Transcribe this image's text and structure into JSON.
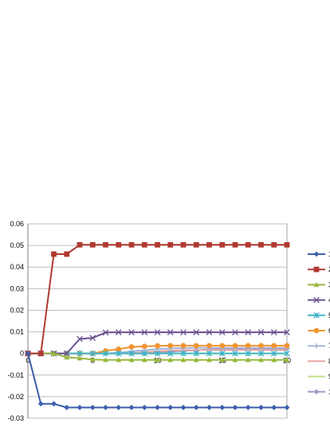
{
  "chart_data": {
    "type": "line",
    "title": "",
    "xlabel": "",
    "ylabel": "",
    "x": [
      0,
      1,
      2,
      3,
      4,
      5,
      6,
      7,
      8,
      9,
      10,
      11,
      12,
      13,
      14,
      15,
      16,
      17,
      18,
      19,
      20
    ],
    "xlim": [
      0,
      20
    ],
    "ylim": [
      -0.03,
      0.06
    ],
    "x_ticks": [
      0,
      5,
      10,
      15,
      20
    ],
    "x_tick_labels": [
      "0",
      "5",
      "10",
      "15",
      "20"
    ],
    "y_ticks": [
      -0.03,
      -0.02,
      -0.01,
      0,
      0.01,
      0.02,
      0.03,
      0.04,
      0.05,
      0.06
    ],
    "y_tick_labels": [
      "-0.03",
      "-0.02",
      "-0.01",
      "0",
      "0.01",
      "0.02",
      "0.03",
      "0.04",
      "0.05",
      "0.06"
    ],
    "grid": "horizontal",
    "legend_position": "right",
    "series": [
      {
        "name": "1",
        "color": "#3a5eab",
        "marker": "diamond",
        "values": [
          0,
          -0.0233,
          -0.0233,
          -0.025,
          -0.025,
          -0.025,
          -0.025,
          -0.025,
          -0.025,
          -0.025,
          -0.025,
          -0.025,
          -0.025,
          -0.025,
          -0.025,
          -0.025,
          -0.025,
          -0.025,
          -0.025,
          -0.025,
          -0.025
        ]
      },
      {
        "name": "2",
        "color": "#b03a32",
        "marker": "square",
        "values": [
          0,
          0,
          0.046,
          0.046,
          0.0503,
          0.0503,
          0.0503,
          0.0503,
          0.0503,
          0.0503,
          0.0503,
          0.0503,
          0.0503,
          0.0503,
          0.0503,
          0.0503,
          0.0503,
          0.0503,
          0.0503,
          0.0503,
          0.0503
        ]
      },
      {
        "name": "3",
        "color": "#97b73e",
        "marker": "triangle",
        "values": [
          0,
          0,
          0,
          -0.0018,
          -0.0022,
          -0.0028,
          -0.003,
          -0.003,
          -0.003,
          -0.003,
          -0.003,
          -0.003,
          -0.003,
          -0.003,
          -0.003,
          -0.003,
          -0.003,
          -0.003,
          -0.003,
          -0.003,
          -0.003
        ]
      },
      {
        "name": "4",
        "color": "#6a5291",
        "marker": "x",
        "values": [
          0,
          0,
          0,
          0,
          0.0067,
          0.0072,
          0.0097,
          0.0098,
          0.0098,
          0.0098,
          0.0098,
          0.0098,
          0.0098,
          0.0098,
          0.0098,
          0.0098,
          0.0098,
          0.0098,
          0.0098,
          0.0098,
          0.0098
        ]
      },
      {
        "name": "5",
        "color": "#3fb5c8",
        "marker": "star",
        "values": [
          0,
          0,
          0,
          0,
          0,
          0,
          0,
          0,
          0,
          0,
          0,
          0,
          0,
          0,
          0,
          0,
          0,
          0,
          0,
          0,
          0
        ]
      },
      {
        "name": "6",
        "color": "#f29430",
        "marker": "circle",
        "values": [
          0,
          0,
          0,
          0,
          0,
          0,
          0.0012,
          0.002,
          0.003,
          0.0033,
          0.0035,
          0.0036,
          0.0036,
          0.0036,
          0.0036,
          0.0036,
          0.0036,
          0.0036,
          0.0036,
          0.0036,
          0.0036
        ]
      },
      {
        "name": "7",
        "color": "#a3b4d9",
        "marker": "plus",
        "values": [
          0,
          0,
          0,
          0,
          0,
          0,
          0,
          0.0003,
          0.001,
          0.0015,
          0.002,
          0.0023,
          0.0025,
          0.0026,
          0.0026,
          0.0026,
          0.0026,
          0.0026,
          0.0026,
          0.0026,
          0.0026
        ]
      },
      {
        "name": "8",
        "color": "#e8a4a1",
        "marker": "none",
        "values": [
          0,
          0,
          0,
          0,
          0,
          0,
          0,
          0,
          0.0002,
          0.0006,
          0.001,
          0.0013,
          0.0015,
          0.0016,
          0.0016,
          0.0016,
          0.0016,
          0.0016,
          0.0016,
          0.0016,
          0.0016
        ]
      },
      {
        "name": "9",
        "color": "#c2e089",
        "marker": "none",
        "values": [
          0,
          0,
          0,
          0,
          0,
          0,
          0,
          0,
          0,
          0,
          0,
          0,
          0,
          0,
          0,
          0,
          0,
          0,
          0,
          0,
          0
        ]
      },
      {
        "name": "1",
        "color": "#a596c4",
        "marker": "diamond",
        "values": [
          0,
          0,
          0,
          0,
          0,
          0,
          0,
          0,
          0,
          0,
          0.0003,
          0.0008,
          0.0012,
          0.0015,
          0.0018,
          0.002,
          0.0021,
          0.0022,
          0.0022,
          0.0022,
          0.0022
        ]
      }
    ]
  }
}
